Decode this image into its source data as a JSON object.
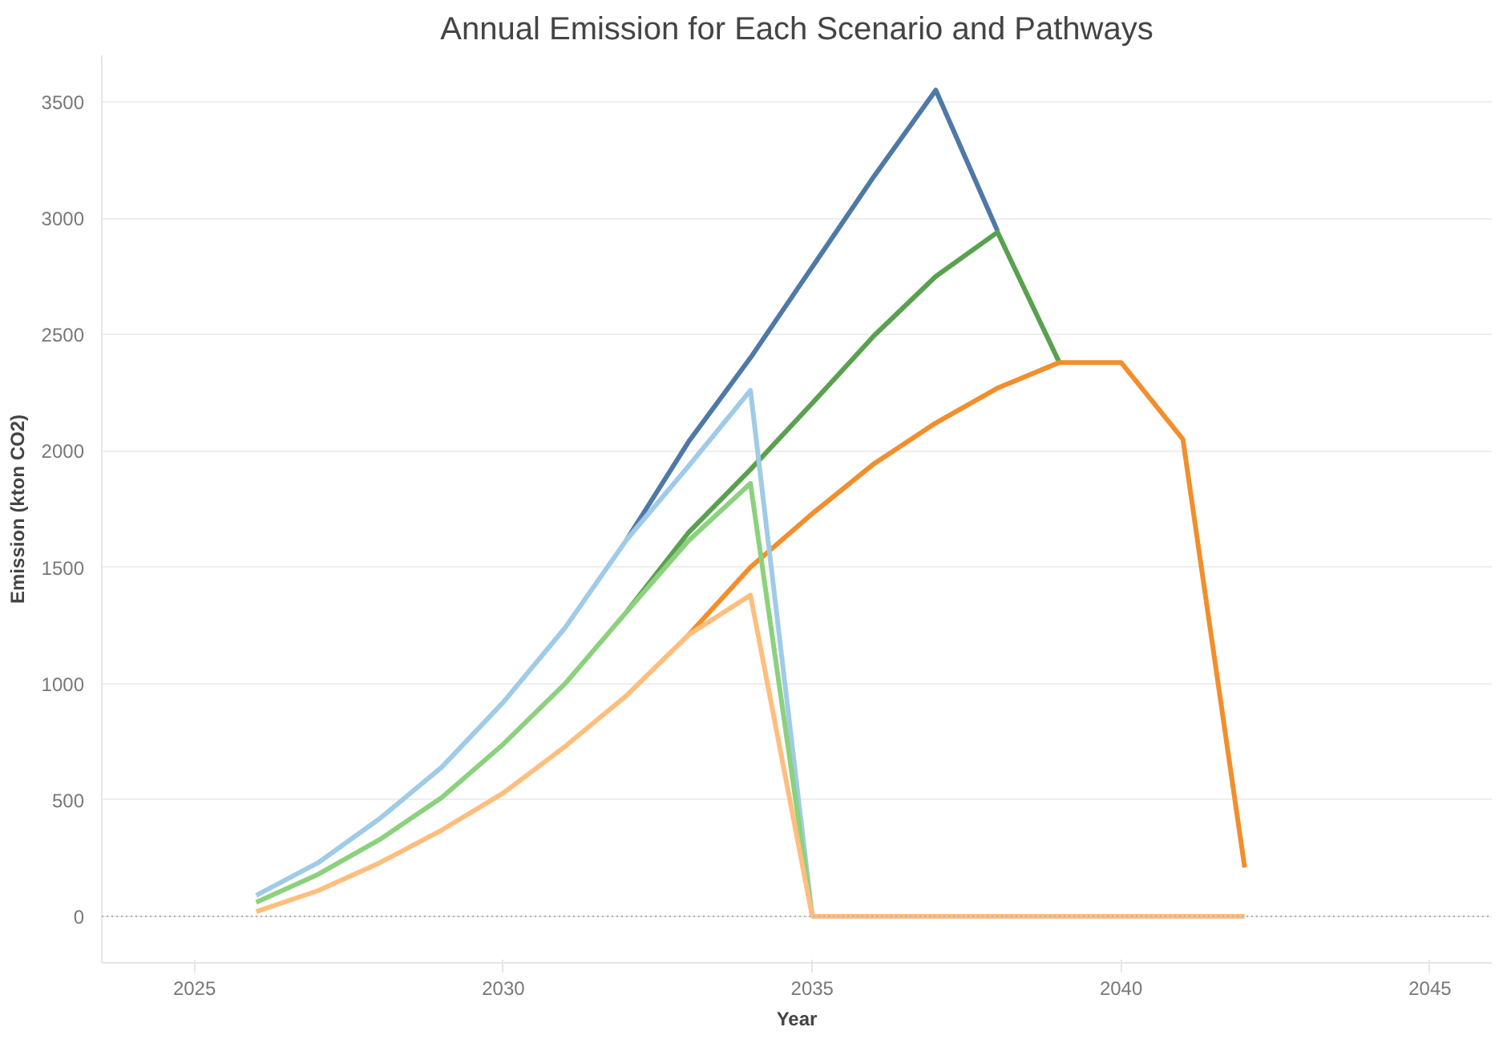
{
  "chart_data": {
    "type": "line",
    "title": "Annual Emission for Each Scenario and Pathways",
    "xlabel": "Year",
    "ylabel": "Emission (kton CO2)",
    "xlim": [
      2023.5,
      2046
    ],
    "xticks": [
      2025,
      2030,
      2035,
      2040,
      2045
    ],
    "ylim": [
      -200,
      3700
    ],
    "yticks": [
      0,
      500,
      1000,
      1500,
      2000,
      2500,
      3000,
      3500
    ],
    "grid": "y",
    "line_style": "solid",
    "ref_lines": [
      {
        "axis": "y",
        "value": 0,
        "label": null,
        "color": "#b0b0b0",
        "line_style": "dotted"
      }
    ],
    "series": [
      {
        "color": "#4e79a7",
        "x": [
          2032,
          2033,
          2034,
          2035,
          2036,
          2037,
          2038
        ],
        "values": [
          1620,
          2040,
          2400,
          2790,
          3180,
          3550,
          2945
        ]
      },
      {
        "color": "#59a14f",
        "x": [
          2032,
          2033,
          2034,
          2035,
          2036,
          2037,
          2038,
          2039
        ],
        "values": [
          1310,
          1650,
          1920,
          2205,
          2495,
          2750,
          2940,
          2380
        ]
      },
      {
        "color": "#f28e2b",
        "x": [
          2033,
          2034,
          2035,
          2036,
          2037,
          2038,
          2039,
          2040,
          2041,
          2042
        ],
        "values": [
          1210,
          1500,
          1730,
          1945,
          2120,
          2270,
          2380,
          2380,
          2050,
          210
        ]
      },
      {
        "color": "#a0cbe8",
        "x": [
          2026,
          2027,
          2028,
          2029,
          2030,
          2031,
          2032,
          2033,
          2034,
          2035
        ],
        "values": [
          90,
          230,
          420,
          640,
          920,
          1240,
          1620,
          1935,
          2260,
          0
        ]
      },
      {
        "color": "#8cd17d",
        "x": [
          2026,
          2027,
          2028,
          2029,
          2030,
          2031,
          2032,
          2033,
          2034,
          2035
        ],
        "values": [
          60,
          180,
          330,
          510,
          740,
          1000,
          1310,
          1615,
          1860,
          0
        ]
      },
      {
        "color": "#ffbe7d",
        "x": [
          2026,
          2027,
          2028,
          2029,
          2030,
          2031,
          2032,
          2033,
          2034,
          2035,
          2036,
          2037,
          2038,
          2039,
          2040,
          2041,
          2042
        ],
        "values": [
          20,
          110,
          230,
          370,
          530,
          730,
          950,
          1210,
          1380,
          0,
          0,
          0,
          0,
          0,
          0,
          0,
          0
        ]
      }
    ]
  }
}
